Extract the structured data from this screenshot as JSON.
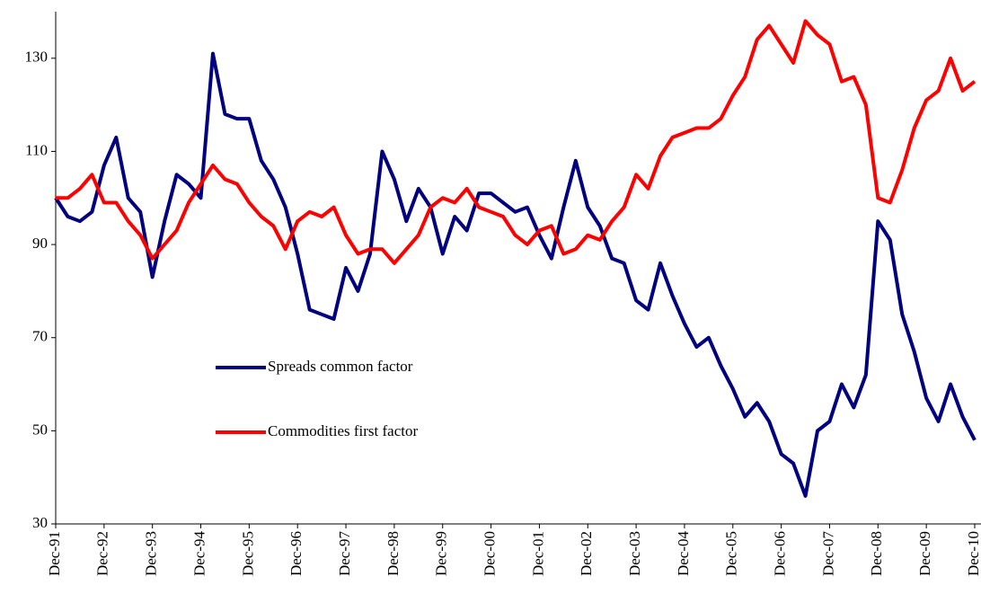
{
  "chart_data": {
    "type": "line",
    "categories": [
      "Dec-91",
      null,
      null,
      null,
      "Dec-92",
      null,
      null,
      null,
      "Dec-93",
      null,
      null,
      null,
      "Dec-94",
      null,
      null,
      null,
      "Dec-95",
      null,
      null,
      null,
      "Dec-96",
      null,
      null,
      null,
      "Dec-97",
      null,
      null,
      null,
      "Dec-98",
      null,
      null,
      null,
      "Dec-99",
      null,
      null,
      null,
      "Dec-00",
      null,
      null,
      null,
      "Dec-01",
      null,
      null,
      null,
      "Dec-02",
      null,
      null,
      null,
      "Dec-03",
      null,
      null,
      null,
      "Dec-04",
      null,
      null,
      null,
      "Dec-05",
      null,
      null,
      null,
      "Dec-06",
      null,
      null,
      null,
      "Dec-07",
      null,
      null,
      null,
      "Dec-08",
      null,
      null,
      null,
      "Dec-09",
      null,
      null,
      null,
      "Dec-10"
    ],
    "series": [
      {
        "name": "Spreads common factor",
        "color": "#000080",
        "values": [
          100,
          96,
          95,
          97,
          107,
          113,
          100,
          97,
          83,
          95,
          105,
          103,
          100,
          131,
          118,
          117,
          117,
          108,
          104,
          98,
          88,
          76,
          75,
          74,
          85,
          80,
          88,
          110,
          104,
          95,
          102,
          98,
          88,
          96,
          93,
          101,
          101,
          99,
          97,
          98,
          92,
          87,
          98,
          108,
          98,
          94,
          87,
          86,
          78,
          76,
          86,
          79,
          73,
          68,
          70,
          64,
          59,
          53,
          56,
          52,
          45,
          43,
          36,
          50,
          52,
          60,
          55,
          62,
          95,
          91,
          75,
          67,
          57,
          52,
          60,
          53,
          48
        ]
      },
      {
        "name": "Commodities first factor",
        "color": "#ff0000",
        "values": [
          100,
          100,
          102,
          105,
          99,
          99,
          95,
          92,
          87,
          90,
          93,
          99,
          103,
          107,
          104,
          103,
          99,
          96,
          94,
          89,
          95,
          97,
          96,
          98,
          92,
          88,
          89,
          89,
          86,
          89,
          92,
          98,
          100,
          99,
          102,
          98,
          97,
          96,
          92,
          90,
          93,
          94,
          88,
          89,
          92,
          91,
          95,
          98,
          105,
          102,
          109,
          113,
          114,
          115,
          115,
          117,
          122,
          126,
          134,
          137,
          133,
          129,
          138,
          135,
          133,
          125,
          126,
          120,
          100,
          99,
          106,
          115,
          121,
          123,
          130,
          123,
          125
        ]
      }
    ],
    "ylim": [
      30,
      140
    ],
    "yticks": [
      30,
      50,
      70,
      90,
      110,
      130
    ],
    "legend": "in-plot-left"
  }
}
